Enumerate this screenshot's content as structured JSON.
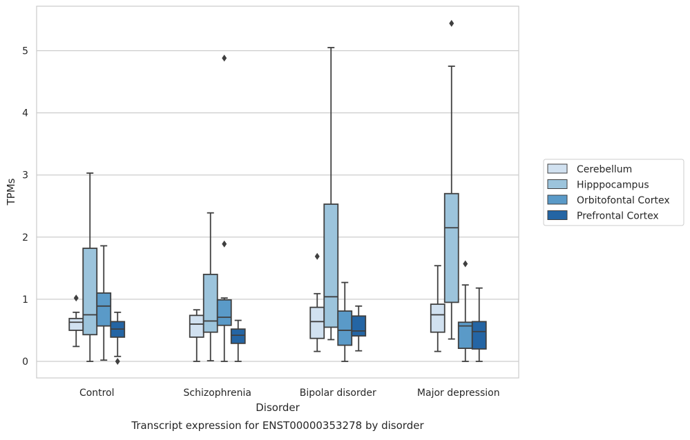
{
  "chart_data": {
    "type": "boxplot",
    "title": "Transcript expression for ENST00000353278 by disorder",
    "xlabel": "Disorder",
    "ylabel": "TPMs",
    "ylim": [
      -0.27,
      5.7
    ],
    "yticks": [
      0,
      1,
      2,
      3,
      4,
      5
    ],
    "grid": true,
    "legend_position": "right",
    "categories": [
      "Control",
      "Schizophrenia",
      "Bipolar disorder",
      "Major depression"
    ],
    "series": [
      {
        "name": "Cerebellum",
        "color": "#d1e1f0",
        "boxes": [
          {
            "whislo": 0.24,
            "q1": 0.5,
            "med": 0.63,
            "q3": 0.69,
            "whishi": 0.79,
            "fliers": [
              1.02
            ]
          },
          {
            "whislo": 0.0,
            "q1": 0.39,
            "med": 0.6,
            "q3": 0.74,
            "whishi": 0.83,
            "fliers": []
          },
          {
            "whislo": 0.16,
            "q1": 0.37,
            "med": 0.64,
            "q3": 0.87,
            "whishi": 1.09,
            "fliers": [
              1.69
            ]
          },
          {
            "whislo": 0.16,
            "q1": 0.47,
            "med": 0.75,
            "q3": 0.92,
            "whishi": 1.54,
            "fliers": []
          }
        ]
      },
      {
        "name": "Hipppocampus",
        "color": "#9cc4dc",
        "boxes": [
          {
            "whislo": 0.0,
            "q1": 0.43,
            "med": 0.75,
            "q3": 1.82,
            "whishi": 3.03,
            "fliers": []
          },
          {
            "whislo": 0.01,
            "q1": 0.47,
            "med": 0.65,
            "q3": 1.4,
            "whishi": 2.39,
            "fliers": []
          },
          {
            "whislo": 0.35,
            "q1": 0.55,
            "med": 1.04,
            "q3": 2.53,
            "whishi": 5.05,
            "fliers": []
          },
          {
            "whislo": 0.36,
            "q1": 0.95,
            "med": 2.15,
            "q3": 2.7,
            "whishi": 4.75,
            "fliers": [
              5.44
            ]
          }
        ]
      },
      {
        "name": "Orbitofontal Cortex",
        "color": "#5a9ac8",
        "boxes": [
          {
            "whislo": 0.02,
            "q1": 0.57,
            "med": 0.89,
            "q3": 1.1,
            "whishi": 1.86,
            "fliers": []
          },
          {
            "whislo": 0.0,
            "q1": 0.58,
            "med": 0.71,
            "q3": 0.99,
            "whishi": 1.02,
            "fliers": [
              1.89,
              4.88
            ]
          },
          {
            "whislo": 0.0,
            "q1": 0.26,
            "med": 0.5,
            "q3": 0.81,
            "whishi": 1.27,
            "fliers": []
          },
          {
            "whislo": 0.0,
            "q1": 0.21,
            "med": 0.57,
            "q3": 0.63,
            "whishi": 1.23,
            "fliers": [
              1.57
            ]
          }
        ]
      },
      {
        "name": "Prefrontal Cortex",
        "color": "#2465a4",
        "boxes": [
          {
            "whislo": 0.08,
            "q1": 0.39,
            "med": 0.52,
            "q3": 0.64,
            "whishi": 0.79,
            "fliers": [
              0.0
            ]
          },
          {
            "whislo": 0.0,
            "q1": 0.29,
            "med": 0.42,
            "q3": 0.52,
            "whishi": 0.66,
            "fliers": []
          },
          {
            "whislo": 0.17,
            "q1": 0.41,
            "med": 0.49,
            "q3": 0.73,
            "whishi": 0.89,
            "fliers": []
          },
          {
            "whislo": 0.0,
            "q1": 0.2,
            "med": 0.48,
            "q3": 0.64,
            "whishi": 1.18,
            "fliers": []
          }
        ]
      }
    ]
  }
}
